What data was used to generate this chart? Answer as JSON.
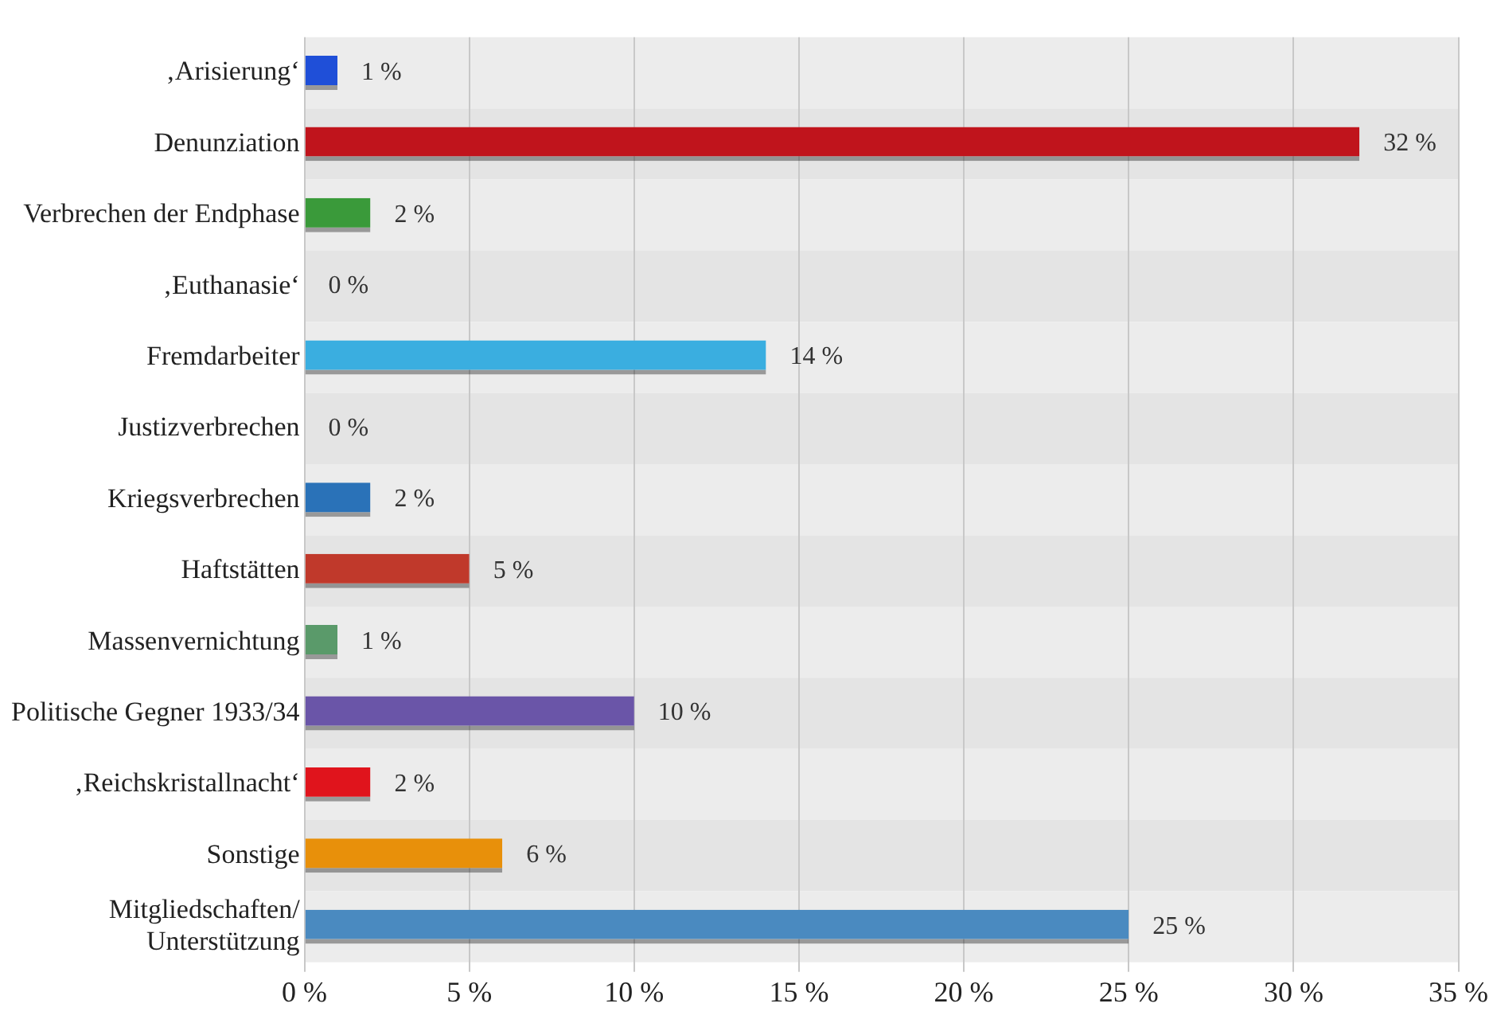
{
  "chart_data": {
    "type": "bar",
    "orientation": "horizontal",
    "categories": [
      "‚Arisierung‘",
      "Denunziation",
      "Verbrechen der Endphase",
      "‚Euthanasie‘",
      "Fremdarbeiter",
      "Justizverbrechen",
      "Kriegsverbrechen",
      "Haftstätten",
      "Massenvernichtung",
      "Politische Gegner 1933/34",
      "‚Reichskristallnacht‘",
      "Sonstige",
      "Mitgliedschaften/ Unterstützung"
    ],
    "values": [
      1,
      32,
      2,
      0,
      14,
      0,
      2,
      5,
      1,
      10,
      2,
      6,
      25
    ],
    "colors": [
      "#1f4fd8",
      "#c0141c",
      "#3a9a3a",
      "#888888",
      "#3aaee0",
      "#888888",
      "#2a72b8",
      "#c0392b",
      "#5a9a6a",
      "#6a55a8",
      "#e0141c",
      "#e8900a",
      "#4a8ac0"
    ],
    "value_labels": [
      "1 %",
      "32 %",
      "2 %",
      "0 %",
      "14 %",
      "0 %",
      "2 %",
      "5 %",
      "1 %",
      "10 %",
      "2 %",
      "6 %",
      "25 %"
    ],
    "xlim": [
      0,
      35
    ],
    "xticks": [
      {
        "value": 0,
        "label": "0 %"
      },
      {
        "value": 5,
        "label": "5 %"
      },
      {
        "value": 10,
        "label": "10 %"
      },
      {
        "value": 15,
        "label": "15 %"
      },
      {
        "value": 20,
        "label": "20 %"
      },
      {
        "value": 25,
        "label": "25 %"
      },
      {
        "value": 30,
        "label": "30 %"
      },
      {
        "value": 35,
        "label": "35 %"
      }
    ],
    "grid": "x",
    "legend": false
  }
}
